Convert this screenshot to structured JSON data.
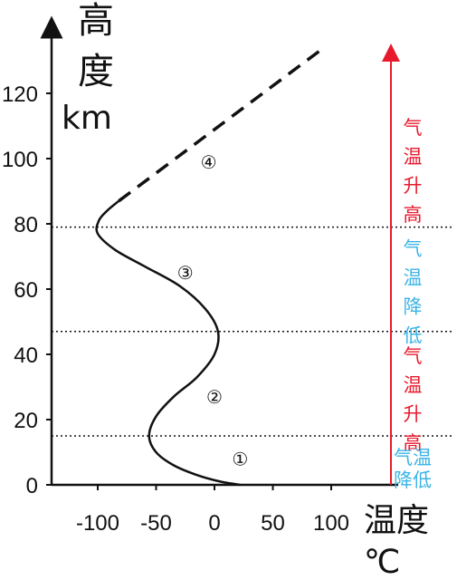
{
  "chart_data": {
    "type": "line",
    "x_axis": {
      "title_line1": "温度",
      "title_line2": "℃",
      "ticks": [
        -100,
        -50,
        0,
        50,
        100
      ],
      "tick_labels": [
        "-100",
        "-50",
        "0",
        "50",
        "100"
      ],
      "range": [
        -140,
        150
      ]
    },
    "y_axis": {
      "title_line1": "高",
      "title_line2": "度",
      "title_line3": "km",
      "ticks": [
        0,
        20,
        40,
        60,
        80,
        100,
        120
      ],
      "tick_labels": [
        "0",
        "20",
        "40",
        "60",
        "80",
        "100",
        "120"
      ],
      "range": [
        0,
        135
      ]
    },
    "temperature_curve": {
      "solid_segment": [
        {
          "x": 22,
          "y": 0
        },
        {
          "x": 5,
          "y": 1
        },
        {
          "x": -15,
          "y": 3
        },
        {
          "x": -35,
          "y": 6
        },
        {
          "x": -50,
          "y": 10
        },
        {
          "x": -56,
          "y": 15
        },
        {
          "x": -50,
          "y": 21
        },
        {
          "x": -35,
          "y": 27
        },
        {
          "x": -15,
          "y": 33
        },
        {
          "x": 0,
          "y": 40
        },
        {
          "x": 3,
          "y": 47
        },
        {
          "x": -8,
          "y": 54
        },
        {
          "x": -30,
          "y": 61
        },
        {
          "x": -60,
          "y": 67
        },
        {
          "x": -85,
          "y": 72
        },
        {
          "x": -100,
          "y": 77
        },
        {
          "x": -99,
          "y": 81
        },
        {
          "x": -92,
          "y": 84
        },
        {
          "x": -82,
          "y": 87
        }
      ],
      "dashed_segment": [
        {
          "x": -82,
          "y": 87
        },
        {
          "x": 90,
          "y": 133
        }
      ]
    },
    "boundaries_km": [
      15,
      47,
      79
    ],
    "layer_labels": [
      {
        "text": "①",
        "x": 22,
        "y": 6
      },
      {
        "text": "②",
        "x": 0,
        "y": 25
      },
      {
        "text": "③",
        "x": -25,
        "y": 63
      },
      {
        "text": "④",
        "x": -5,
        "y": 97
      }
    ],
    "trend_labels": [
      {
        "chars": [
          "气",
          "温",
          "升",
          "高"
        ],
        "y_top": 113,
        "color": "#e8192c"
      },
      {
        "chars": [
          "气",
          "温",
          "降",
          "低"
        ],
        "y_top": 76,
        "color": "#3cb4e6"
      },
      {
        "chars": [
          "气",
          "温",
          "升",
          "高"
        ],
        "y_top": 43,
        "color": "#e8192c"
      },
      {
        "chars": [
          "气温",
          "降低"
        ],
        "y_top": 12,
        "color": "#3cb4e6",
        "small": true
      }
    ],
    "trend_arrow_color": "#e8192c"
  }
}
